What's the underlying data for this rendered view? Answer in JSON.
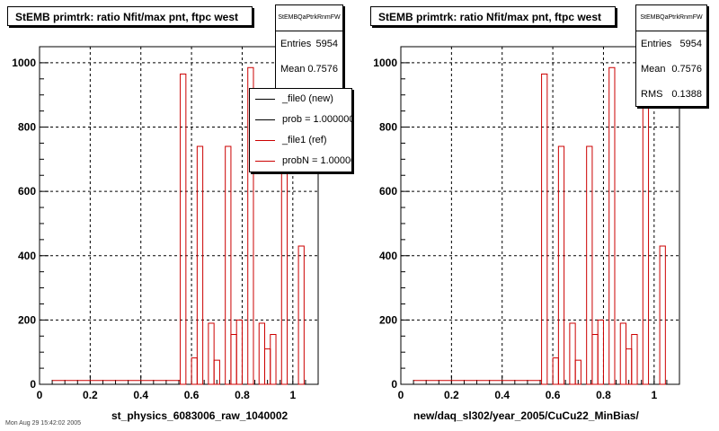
{
  "chart_data": [
    {
      "type": "bar",
      "title": "StEMB primtrk: ratio Nfit/max pnt, ftpc west",
      "xlabel": "st_physics_6083006_raw_1040002",
      "ylabel": "",
      "xlim": [
        0,
        1.1
      ],
      "ylim": [
        0,
        1050
      ],
      "xticks": [
        "0",
        "0.2",
        "0.4",
        "0.6",
        "0.8",
        "1"
      ],
      "xtick_values": [
        0,
        0.2,
        0.4,
        0.6,
        0.8,
        1
      ],
      "yticks": [
        "0",
        "200",
        "400",
        "600",
        "800",
        "1000"
      ],
      "ytick_values": [
        0,
        200,
        400,
        600,
        800,
        1000
      ],
      "grid": true,
      "bin_width": 0.02222,
      "bin_edges_start": 0.5556,
      "series": [
        {
          "name": "_file0 (new)",
          "color": "#000000",
          "values": []
        },
        {
          "name": "_file1 (ref)",
          "color": "#cc0000",
          "values": [
            965,
            0,
            82,
            740,
            0,
            190,
            75,
            0,
            740,
            155,
            200,
            0,
            985,
            0,
            190,
            110,
            155,
            0,
            895,
            0,
            0,
            430
          ]
        }
      ],
      "stats": {
        "name": "StEMBQaPtrkRnmFW",
        "entries_label": "Entries",
        "entries": "5954",
        "mean_label": "Mean",
        "mean": "0.7576"
      },
      "legend": [
        {
          "label": "_file0 (new)",
          "color": "#000000"
        },
        {
          "label": "prob = 1.000000",
          "color": "#000000"
        },
        {
          "label": "_file1 (ref)",
          "color": "#cc0000"
        },
        {
          "label": "probN = 1.000000",
          "color": "#cc0000"
        }
      ]
    },
    {
      "type": "bar",
      "title": "StEMB primtrk: ratio Nfit/max pnt, ftpc west",
      "xlabel": "new/daq_sl302/year_2005/CuCu22_MinBias/",
      "ylabel": "",
      "xlim": [
        0,
        1.1
      ],
      "ylim": [
        0,
        1050
      ],
      "xticks": [
        "0",
        "0.2",
        "0.4",
        "0.6",
        "0.8",
        "1"
      ],
      "xtick_values": [
        0,
        0.2,
        0.4,
        0.6,
        0.8,
        1
      ],
      "yticks": [
        "0",
        "200",
        "400",
        "600",
        "800",
        "1000"
      ],
      "ytick_values": [
        0,
        200,
        400,
        600,
        800,
        1000
      ],
      "grid": true,
      "bin_width": 0.02222,
      "bin_edges_start": 0.5556,
      "series": [
        {
          "name": "",
          "color": "#cc0000",
          "values": [
            965,
            0,
            82,
            740,
            0,
            190,
            75,
            0,
            740,
            155,
            200,
            0,
            985,
            0,
            190,
            110,
            155,
            0,
            895,
            0,
            0,
            430
          ]
        }
      ],
      "stats": {
        "name": "StEMBQaPtrkRnmFW",
        "entries_label": "Entries",
        "entries": "5954",
        "mean_label": "Mean",
        "mean": "0.7576",
        "rms_label": "RMS",
        "rms": "0.1388"
      }
    }
  ],
  "footer": "Mon Aug 29 15:42:02 2005"
}
